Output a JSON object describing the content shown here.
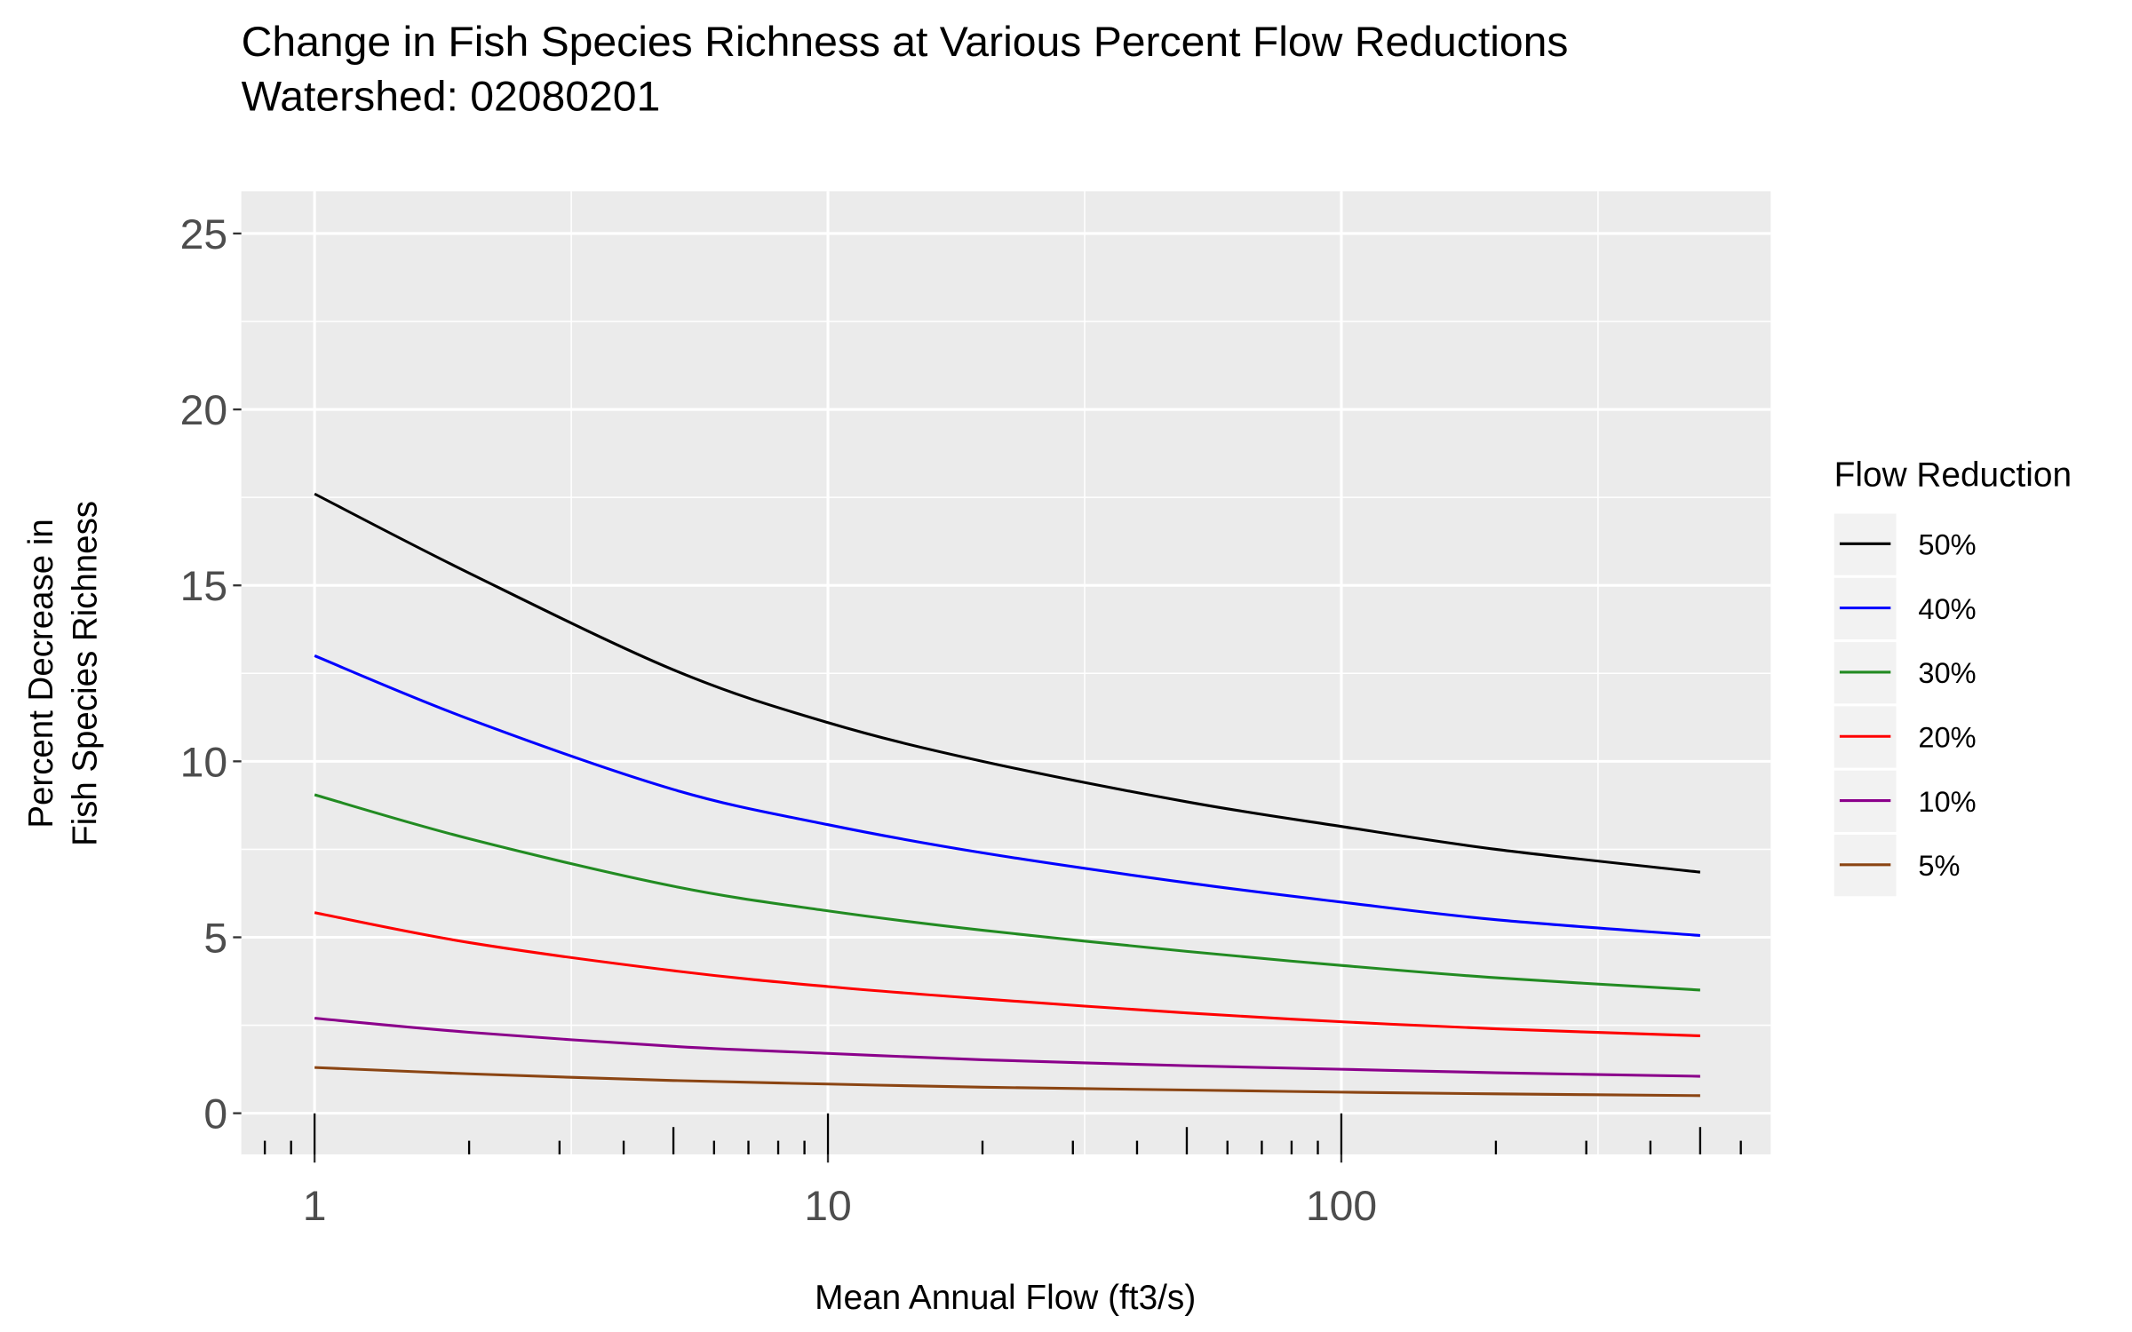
{
  "chart_data": {
    "type": "line",
    "title": "Change in Fish Species Richness at Various Percent Flow Reductions",
    "subtitle": "Watershed: 02080201",
    "xlabel": "Mean Annual Flow (ft3/s)",
    "ylabel_line1": "Percent Decrease in",
    "ylabel_line2": "Fish Species Richness",
    "x_scale": "log10",
    "xlim": [
      0.72,
      686
    ],
    "ylim": [
      -1.17,
      26.2
    ],
    "x_ticks": [
      1,
      10,
      100
    ],
    "x_tick_labels": [
      "1",
      "10",
      "100"
    ],
    "y_ticks": [
      0,
      5,
      10,
      15,
      20,
      25
    ],
    "y_tick_labels": [
      "0",
      "5",
      "10",
      "15",
      "20",
      "25"
    ],
    "grid": true,
    "log_ticks": true,
    "legend": {
      "title": "Flow Reduction",
      "placement": "right"
    },
    "x": [
      1,
      2,
      5,
      10,
      20,
      50,
      100,
      200,
      500
    ],
    "series": [
      {
        "name": "50%",
        "color": "#000000",
        "values": [
          17.6,
          15.35,
          12.6,
          11.1,
          10.0,
          8.85,
          8.15,
          7.5,
          6.85
        ]
      },
      {
        "name": "40%",
        "color": "#0000FF",
        "values": [
          13.0,
          11.2,
          9.2,
          8.2,
          7.4,
          6.55,
          6.0,
          5.5,
          5.05
        ]
      },
      {
        "name": "30%",
        "color": "#228B22",
        "values": [
          9.05,
          7.8,
          6.45,
          5.75,
          5.2,
          4.6,
          4.2,
          3.85,
          3.5
        ]
      },
      {
        "name": "20%",
        "color": "#FF0000",
        "values": [
          5.7,
          4.85,
          4.05,
          3.6,
          3.25,
          2.85,
          2.6,
          2.4,
          2.2
        ]
      },
      {
        "name": "10%",
        "color": "#8B008B",
        "values": [
          2.7,
          2.3,
          1.9,
          1.7,
          1.52,
          1.35,
          1.25,
          1.15,
          1.05
        ]
      },
      {
        "name": "5%",
        "color": "#8B4513",
        "values": [
          1.3,
          1.12,
          0.93,
          0.83,
          0.74,
          0.66,
          0.6,
          0.55,
          0.5
        ]
      }
    ]
  }
}
